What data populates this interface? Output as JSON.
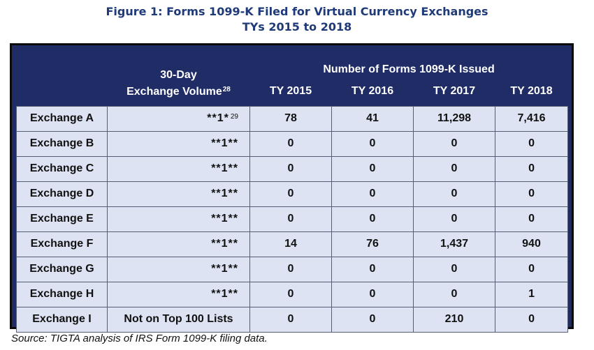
{
  "title": {
    "line1": "Figure 1:  Forms 1099-K Filed for Virtual Currency Exchanges",
    "line2": "TYs 2015 to 2018"
  },
  "table": {
    "header": {
      "volume_line1": "30-Day",
      "volume_line2": "Exchange Volume",
      "volume_footnote": "28",
      "group_label": "Number of Forms 1099-K Issued",
      "years": [
        "TY 2015",
        "TY 2016",
        "TY 2017",
        "TY 2018"
      ]
    },
    "rows": [
      {
        "exchange": "Exchange A",
        "volume": "**1*",
        "footnote": "29",
        "values": [
          "78",
          "41",
          "11,298",
          "7,416"
        ]
      },
      {
        "exchange": "Exchange B",
        "volume": "**1**",
        "footnote": "",
        "values": [
          "0",
          "0",
          "0",
          "0"
        ]
      },
      {
        "exchange": "Exchange C",
        "volume": "**1**",
        "footnote": "",
        "values": [
          "0",
          "0",
          "0",
          "0"
        ]
      },
      {
        "exchange": "Exchange D",
        "volume": "**1**",
        "footnote": "",
        "values": [
          "0",
          "0",
          "0",
          "0"
        ]
      },
      {
        "exchange": "Exchange E",
        "volume": "**1**",
        "footnote": "",
        "values": [
          "0",
          "0",
          "0",
          "0"
        ]
      },
      {
        "exchange": "Exchange F",
        "volume": "**1**",
        "footnote": "",
        "values": [
          "14",
          "76",
          "1,437",
          "940"
        ]
      },
      {
        "exchange": "Exchange G",
        "volume": "**1**",
        "footnote": "",
        "values": [
          "0",
          "0",
          "0",
          "0"
        ]
      },
      {
        "exchange": "Exchange H",
        "volume": "**1**",
        "footnote": "",
        "values": [
          "0",
          "0",
          "0",
          "1"
        ]
      },
      {
        "exchange": "Exchange I",
        "volume": "Not on Top 100 Lists",
        "footnote": "",
        "values": [
          "0",
          "0",
          "210",
          "0"
        ]
      }
    ]
  },
  "source": "Source:  TIGTA analysis of IRS Form 1099-K filing data.",
  "colors": {
    "title": "#1f3a78",
    "header_bg": "#1f2c66",
    "cell_bg": "#dde3f2",
    "frame": "#0b0b0b"
  }
}
